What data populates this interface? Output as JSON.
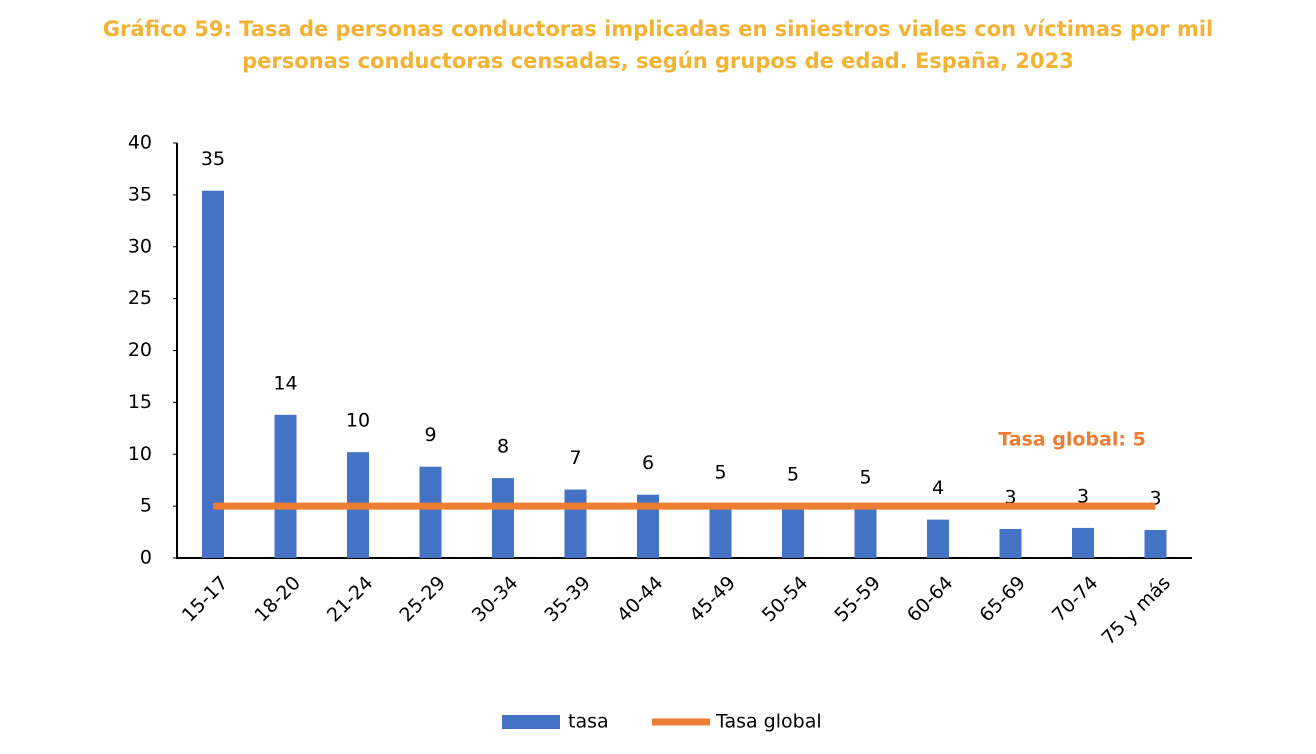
{
  "chart_data": {
    "type": "bar",
    "title": [
      "Gráfico 59: Tasa de personas conductoras implicadas en siniestros viales con víctimas por mil",
      "personas conductoras censadas, según grupos de edad. España, 2023"
    ],
    "categories": [
      "15-17",
      "18-20",
      "21-24",
      "25-29",
      "30-34",
      "35-39",
      "40-44",
      "45-49",
      "50-54",
      "55-59",
      "60-64",
      "65-69",
      "70-74",
      "75 y más"
    ],
    "series": [
      {
        "name": "tasa",
        "type": "bar",
        "color": "#4472c4",
        "values": [
          35.4,
          13.8,
          10.2,
          8.8,
          7.7,
          6.6,
          6.1,
          5.2,
          5.0,
          4.7,
          3.7,
          2.8,
          2.9,
          2.7
        ],
        "value_labels": [
          "35",
          "14",
          "10",
          "9",
          "8",
          "7",
          "6",
          "5",
          "5",
          "5",
          "4",
          "3",
          "3",
          "3"
        ]
      },
      {
        "name": "Tasa global",
        "type": "line",
        "color": "#ed7d31",
        "values": [
          5,
          5,
          5,
          5,
          5,
          5,
          5,
          5,
          5,
          5,
          5,
          5,
          5,
          5
        ]
      }
    ],
    "annotation": "Tasa global: 5",
    "ylim": [
      0,
      40
    ],
    "yticks": [
      0,
      5,
      10,
      15,
      20,
      25,
      30,
      35,
      40
    ],
    "grid": false,
    "legend": "bottom"
  }
}
